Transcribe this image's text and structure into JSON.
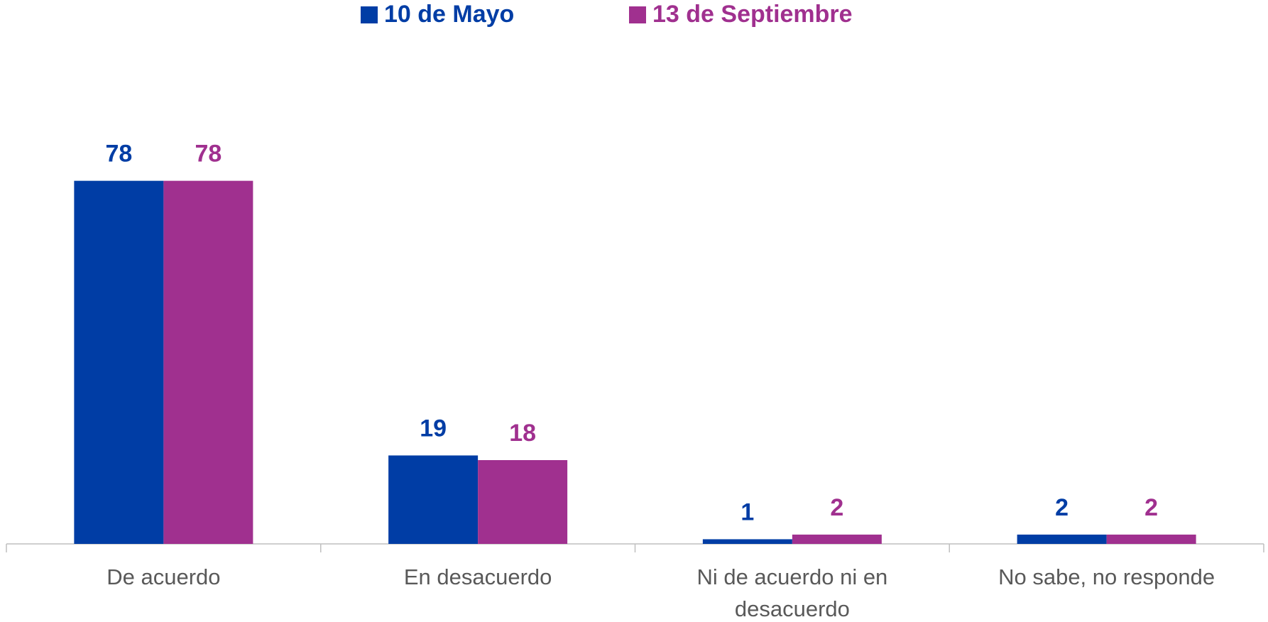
{
  "chart_data": {
    "type": "bar",
    "categories": [
      "De acuerdo",
      "En desacuerdo",
      "Ni de acuerdo ni en desacuerdo",
      "No sabe, no responde"
    ],
    "series": [
      {
        "name": "10 de Mayo",
        "color": "#003da5",
        "values": [
          78,
          19,
          1,
          2
        ]
      },
      {
        "name": "13 de Septiembre",
        "color": "#a0308f",
        "values": [
          78,
          18,
          2,
          2
        ]
      }
    ],
    "legend": "top"
  }
}
